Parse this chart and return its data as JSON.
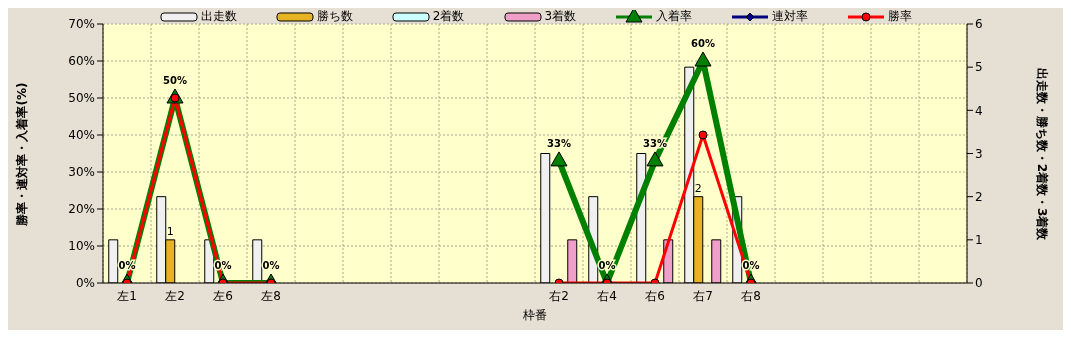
{
  "chart_data": {
    "type": "bar",
    "xlabel": "枠番",
    "ylabel": "勝率・連対率・入着率(%)",
    "y2label": "出走数・勝ち数・2着数・3着数",
    "categories": [
      "左1",
      "左2",
      "左6",
      "左8",
      null,
      null,
      null,
      null,
      null,
      "右2",
      "右4",
      "右6",
      "右7",
      "右8",
      null,
      null,
      null,
      null
    ],
    "series": [
      {
        "name": "出走数",
        "axis": "y2",
        "color": "#f0f0f0",
        "values": [
          1,
          2,
          1,
          1,
          null,
          null,
          null,
          null,
          null,
          3,
          2,
          3,
          5,
          2,
          null,
          null,
          null,
          null
        ]
      },
      {
        "name": "勝ち数",
        "axis": "y2",
        "color": "#e6b422",
        "values": [
          0,
          1,
          0,
          0,
          null,
          null,
          null,
          null,
          null,
          0,
          0,
          0,
          2,
          0,
          null,
          null,
          null,
          null
        ],
        "value_labels": [
          null,
          "1",
          null,
          null,
          null,
          null,
          null,
          null,
          null,
          null,
          null,
          null,
          "2",
          null,
          null,
          null,
          null,
          null
        ]
      },
      {
        "name": "2着数",
        "axis": "y2",
        "color": "#ccffff",
        "values": [
          0,
          0,
          0,
          0,
          null,
          null,
          null,
          null,
          null,
          0,
          0,
          0,
          0,
          0,
          null,
          null,
          null,
          null
        ]
      },
      {
        "name": "3着数",
        "axis": "y2",
        "color": "#f0a0c8",
        "values": [
          0,
          0,
          0,
          0,
          null,
          null,
          null,
          null,
          null,
          1,
          0,
          1,
          1,
          0,
          null,
          null,
          null,
          null
        ]
      },
      {
        "name": "入着率",
        "type": "line",
        "marker": "triangle",
        "color": "#008000",
        "values": [
          0,
          50,
          0,
          0,
          null,
          null,
          null,
          null,
          null,
          33,
          0,
          33,
          60,
          0,
          null,
          null,
          null,
          null
        ],
        "value_labels": [
          "0%",
          "50%",
          "0%",
          "0%",
          null,
          null,
          null,
          null,
          null,
          "33%",
          "0%",
          "33%",
          "60%",
          "0%",
          null,
          null,
          null,
          null
        ]
      },
      {
        "name": "連対率",
        "type": "line",
        "marker": "diamond",
        "color": "#000080",
        "values": [
          null,
          null,
          null,
          null,
          null,
          null,
          null,
          null,
          null,
          null,
          null,
          null,
          null,
          null,
          null,
          null,
          null,
          null
        ]
      },
      {
        "name": "勝率",
        "type": "line",
        "marker": "circle",
        "color": "#ff0000",
        "values": [
          0,
          50,
          0,
          0,
          null,
          null,
          null,
          null,
          null,
          0,
          0,
          0,
          40,
          0,
          null,
          null,
          null,
          null
        ]
      }
    ],
    "ylim": [
      0,
      70
    ],
    "yticks": [
      {
        "value": 0,
        "label": "0%"
      },
      {
        "value": 10,
        "label": "10%"
      },
      {
        "value": 20,
        "label": "20%"
      },
      {
        "value": 30,
        "label": "30%"
      },
      {
        "value": 40,
        "label": "40%"
      },
      {
        "value": 50,
        "label": "50%"
      },
      {
        "value": 60,
        "label": "60%"
      },
      {
        "value": 70,
        "label": "70%"
      }
    ],
    "y2lim": [
      0,
      6
    ],
    "y2ticks": [
      0,
      1,
      2,
      3,
      4,
      5,
      6
    ],
    "grid": true,
    "legend": "top"
  }
}
